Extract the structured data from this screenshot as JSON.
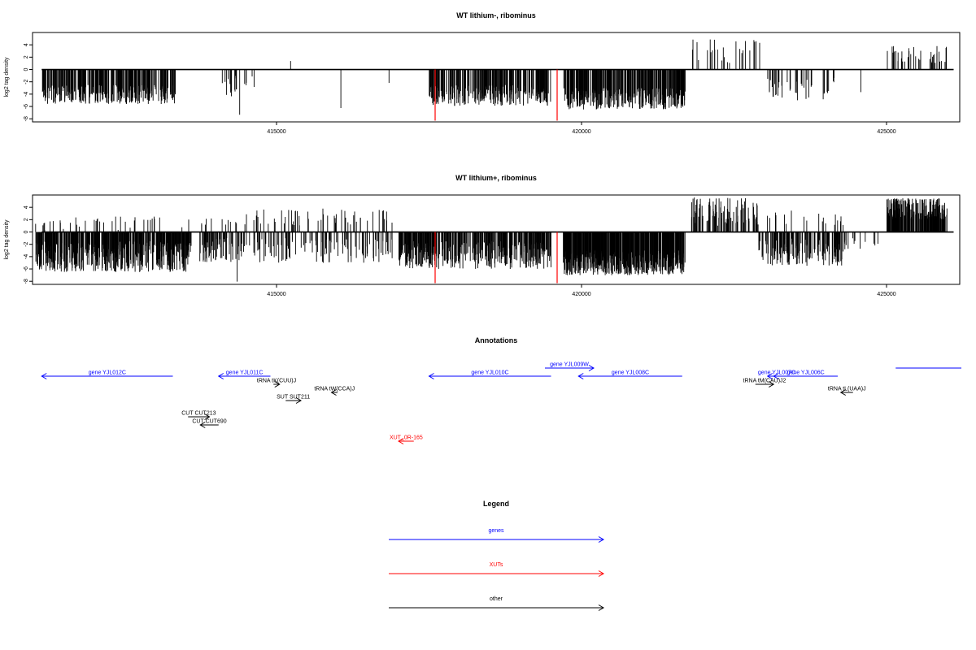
{
  "chart_data": [
    {
      "type": "bar",
      "title": "WT lithium-, ribominus",
      "ylabel": "log2 tag density",
      "xlabel": "",
      "xlim": [
        411000,
        426200
      ],
      "ylim": [
        -8.5,
        6
      ],
      "x_ticks": [
        "415000",
        "420000",
        "425000"
      ],
      "y_ticks": [
        "4",
        "2",
        "0",
        "-2",
        "-4",
        "-6",
        "-8"
      ],
      "red_markers": [
        417600,
        419600
      ],
      "segments": [
        {
          "start": 411150,
          "end": 413350,
          "sign": -1,
          "min": 2.5,
          "max": 5.6,
          "density": 1.8
        },
        {
          "start": 414050,
          "end": 414350,
          "sign": -1,
          "min": 1.0,
          "max": 4.5,
          "density": 0.6
        },
        {
          "start": 414350,
          "end": 414450,
          "sign": -1,
          "min": 6.5,
          "max": 8.2,
          "density": 0.05
        },
        {
          "start": 414450,
          "end": 414650,
          "sign": -1,
          "min": 1.0,
          "max": 3.0,
          "density": 0.3
        },
        {
          "start": 415200,
          "end": 415250,
          "sign": 1,
          "min": 1.2,
          "max": 1.6,
          "density": 0.05
        },
        {
          "start": 416050,
          "end": 416100,
          "sign": -1,
          "min": 6.0,
          "max": 6.5,
          "density": 0.05
        },
        {
          "start": 416800,
          "end": 416900,
          "sign": -1,
          "min": 2.0,
          "max": 2.5,
          "density": 0.1
        },
        {
          "start": 417500,
          "end": 419500,
          "sign": -1,
          "min": 2.5,
          "max": 6.0,
          "density": 1.8
        },
        {
          "start": 419700,
          "end": 421700,
          "sign": -1,
          "min": 3.0,
          "max": 6.5,
          "density": 2.2
        },
        {
          "start": 421800,
          "end": 422950,
          "sign": 1,
          "min": 1.0,
          "max": 5.4,
          "density": 0.3
        },
        {
          "start": 423050,
          "end": 424150,
          "sign": -1,
          "min": 1.0,
          "max": 5.0,
          "density": 0.5
        },
        {
          "start": 424500,
          "end": 424600,
          "sign": -1,
          "min": 3.5,
          "max": 4.0,
          "density": 0.05
        },
        {
          "start": 425000,
          "end": 426000,
          "sign": 1,
          "min": 1.0,
          "max": 4.2,
          "density": 0.5
        }
      ]
    },
    {
      "type": "bar",
      "title": "WT lithium+, ribominus",
      "ylabel": "log2 tag density",
      "xlabel": "",
      "xlim": [
        411000,
        426200
      ],
      "ylim": [
        -8.5,
        6
      ],
      "x_ticks": [
        "415000",
        "420000",
        "425000"
      ],
      "y_ticks": [
        "4",
        "2",
        "0",
        "-2",
        "-4",
        "-6",
        "-8"
      ],
      "red_markers": [
        417600,
        419600
      ],
      "segments": [
        {
          "start": 411050,
          "end": 413600,
          "sign": 1,
          "min": 0.3,
          "max": 2.5,
          "density": 0.2
        },
        {
          "start": 411050,
          "end": 413600,
          "sign": -1,
          "min": 1.5,
          "max": 6.5,
          "density": 2.5
        },
        {
          "start": 413700,
          "end": 414500,
          "sign": 1,
          "min": 1.0,
          "max": 2.2,
          "density": 0.2
        },
        {
          "start": 413700,
          "end": 414500,
          "sign": -1,
          "min": 1.0,
          "max": 5.0,
          "density": 1.0
        },
        {
          "start": 414350,
          "end": 414450,
          "sign": -1,
          "min": 7.5,
          "max": 8.4,
          "density": 0.05
        },
        {
          "start": 414500,
          "end": 416900,
          "sign": 1,
          "min": 1.0,
          "max": 3.8,
          "density": 0.3
        },
        {
          "start": 414500,
          "end": 416900,
          "sign": -1,
          "min": 1.0,
          "max": 5.0,
          "density": 0.6
        },
        {
          "start": 417000,
          "end": 419500,
          "sign": -1,
          "min": 1.5,
          "max": 6.0,
          "density": 2.0
        },
        {
          "start": 419700,
          "end": 421700,
          "sign": -1,
          "min": 3.0,
          "max": 7.0,
          "density": 3.5
        },
        {
          "start": 421800,
          "end": 422900,
          "sign": 1,
          "min": 1.0,
          "max": 5.6,
          "density": 1.2
        },
        {
          "start": 422900,
          "end": 424300,
          "sign": -1,
          "min": 1.0,
          "max": 5.5,
          "density": 1.5
        },
        {
          "start": 423000,
          "end": 424300,
          "sign": 1,
          "min": 1.0,
          "max": 3.5,
          "density": 0.2
        },
        {
          "start": 424300,
          "end": 424900,
          "sign": -1,
          "min": 1.0,
          "max": 3.0,
          "density": 0.3
        },
        {
          "start": 425000,
          "end": 426000,
          "sign": 1,
          "min": 2.0,
          "max": 5.5,
          "density": 2.5
        }
      ]
    }
  ],
  "annotations": {
    "title": "Annotations",
    "items": [
      {
        "label": "gene YJL012C",
        "category": "genes",
        "dir": "left",
        "start": 411150,
        "end": 413300,
        "row": 0
      },
      {
        "label": "gene YJL011C",
        "category": "genes",
        "dir": "left",
        "start": 414050,
        "end": 414900,
        "row": 0
      },
      {
        "label": "tRNA tK(CUU)J",
        "category": "other",
        "dir": "right",
        "start": 414950,
        "end": 415050,
        "row": 1
      },
      {
        "label": "tRNA tW(CCA)J",
        "category": "other",
        "dir": "left",
        "start": 415900,
        "end": 416000,
        "row": 2
      },
      {
        "label": "SUT SUT211",
        "category": "other",
        "dir": "right",
        "start": 415150,
        "end": 415400,
        "row": 3
      },
      {
        "label": "CUT CUT213",
        "category": "other",
        "dir": "right",
        "start": 413550,
        "end": 413900,
        "row": 5
      },
      {
        "label": "CUT CUT690",
        "category": "other",
        "dir": "left",
        "start": 413750,
        "end": 414050,
        "row": 6
      },
      {
        "label": "XUT_0R-165",
        "category": "XUTs",
        "dir": "left",
        "start": 417000,
        "end": 417250,
        "row": 8
      },
      {
        "label": "gene YJL010C",
        "category": "genes",
        "dir": "left",
        "start": 417500,
        "end": 419500,
        "row": 0
      },
      {
        "label": "gene YJL009W",
        "category": "genes",
        "dir": "right",
        "start": 419400,
        "end": 420200,
        "row": -1
      },
      {
        "label": "gene YJL008C",
        "category": "genes",
        "dir": "left",
        "start": 419950,
        "end": 421650,
        "row": 0
      },
      {
        "label": "gene YJL007C",
        "category": "genes",
        "dir": "left",
        "start": 423050,
        "end": 423350,
        "row": 0
      },
      {
        "label": "gene YJL006C",
        "category": "genes",
        "dir": "left",
        "start": 423150,
        "end": 424200,
        "row": 0
      },
      {
        "label": "tRNA tM(CAU)J2",
        "category": "other",
        "dir": "right",
        "start": 422850,
        "end": 423150,
        "row": 1
      },
      {
        "label": "tRNA tL(UAA)J",
        "category": "other",
        "dir": "left",
        "start": 424250,
        "end": 424450,
        "row": 2
      },
      {
        "label": "",
        "category": "genes",
        "dir": "none",
        "start": 425150,
        "end": 426500,
        "row": -1
      }
    ]
  },
  "legend": {
    "title": "Legend",
    "entries": [
      {
        "label": "genes",
        "category": "genes"
      },
      {
        "label": "XUTs",
        "category": "XUTs"
      },
      {
        "label": "other",
        "category": "other"
      }
    ]
  },
  "colors": {
    "genes": "#0000ff",
    "XUTs": "#ff0000",
    "other": "#000000",
    "marker": "#ff0000",
    "bars": "#000000"
  }
}
